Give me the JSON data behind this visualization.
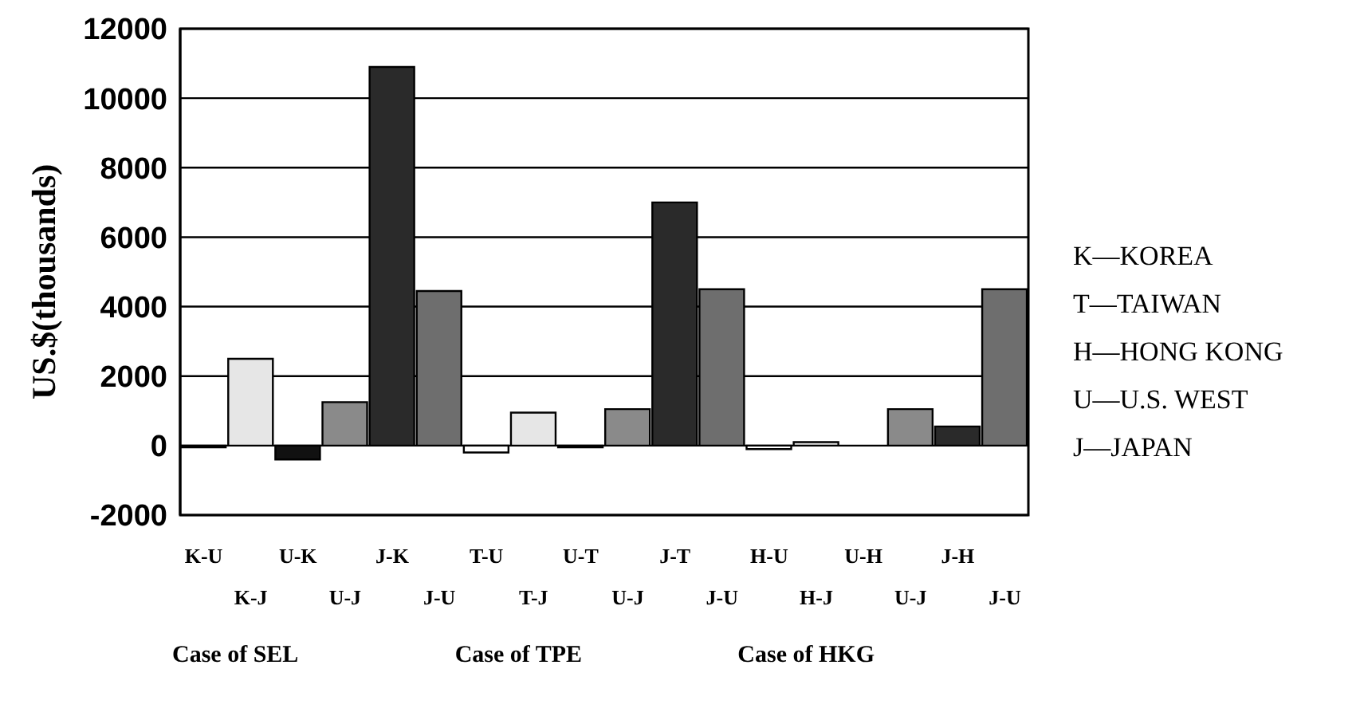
{
  "chart_data": {
    "type": "bar",
    "ylabel": "US.$(thousands)",
    "categories": [
      "K-U",
      "K-J",
      "U-K",
      "U-J",
      "J-K",
      "J-U",
      "T-U",
      "T-J",
      "U-T",
      "U-J",
      "J-T",
      "J-U",
      "H-U",
      "H-J",
      "U-H",
      "U-J",
      "J-H",
      "J-U"
    ],
    "values": [
      -50,
      2500,
      -400,
      1250,
      10900,
      4450,
      -200,
      950,
      -50,
      1050,
      7000,
      4500,
      -100,
      100,
      0,
      1050,
      550,
      4500
    ],
    "colors": [
      "#ffffff",
      "#e6e6e6",
      "#111111",
      "#8a8a8a",
      "#2a2a2a",
      "#6e6e6e",
      "#ffffff",
      "#e6e6e6",
      "#111111",
      "#8a8a8a",
      "#2a2a2a",
      "#6e6e6e",
      "#ffffff",
      "#e6e6e6",
      "#111111",
      "#8a8a8a",
      "#2a2a2a",
      "#6e6e6e"
    ],
    "ylim": [
      -2000,
      12000
    ],
    "yticks": [
      -2000,
      0,
      2000,
      4000,
      6000,
      8000,
      10000,
      12000
    ],
    "grid": "y",
    "annotations": [
      "Case of SEL",
      "Case of TPE",
      "Case of HKG",
      "K—KOREA",
      "T—TAIWAN",
      "H—HONG KONG",
      "U—U.S. WEST",
      "J—JAPAN"
    ]
  }
}
